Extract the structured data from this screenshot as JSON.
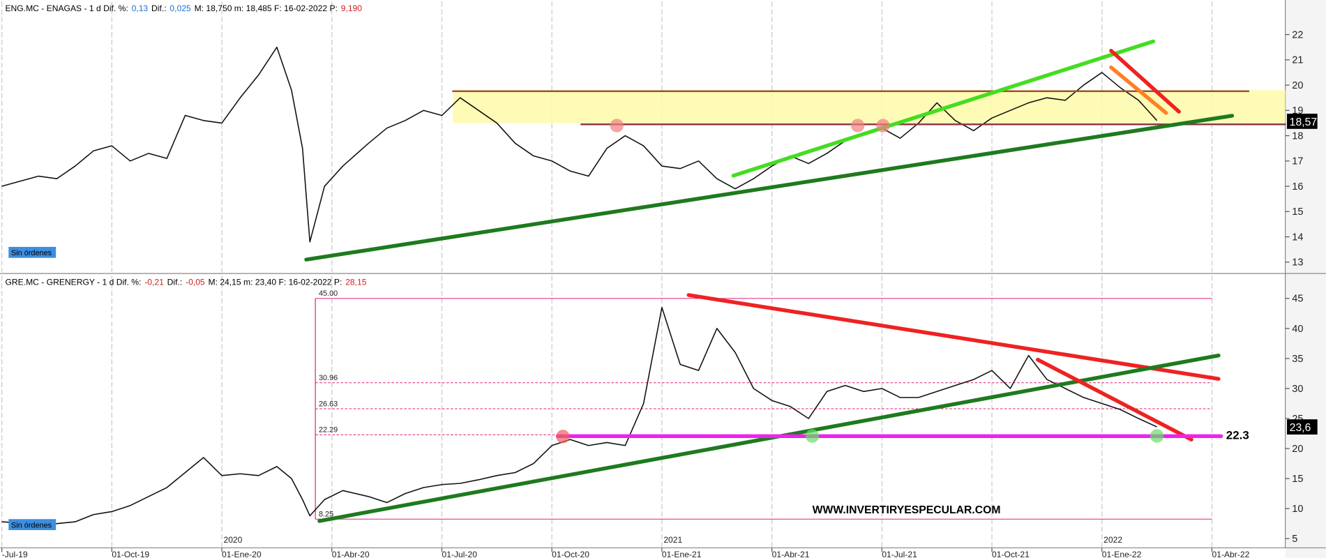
{
  "x_axis": {
    "xlim": [
      0,
      35
    ],
    "xticks": [
      {
        "value": 0,
        "label": "-Jul-19"
      },
      {
        "value": 3,
        "label": "01-Oct-19"
      },
      {
        "value": 6,
        "label": "01-Ene-20"
      },
      {
        "value": 9,
        "label": "01-Abr-20"
      },
      {
        "value": 12,
        "label": "01-Jul-20"
      },
      {
        "value": 15,
        "label": "01-Oct-20"
      },
      {
        "value": 18,
        "label": "01-Ene-21"
      },
      {
        "value": 21,
        "label": "01-Abr-21"
      },
      {
        "value": 24,
        "label": "01-Jul-21"
      },
      {
        "value": 27,
        "label": "01-Oct-21"
      },
      {
        "value": 30,
        "label": "01-Ene-22"
      },
      {
        "value": 33,
        "label": "01-Abr-22"
      }
    ],
    "year_labels": [
      {
        "value": 6,
        "label": "2020"
      },
      {
        "value": 18,
        "label": "2021"
      },
      {
        "value": 30,
        "label": "2022"
      }
    ]
  },
  "watermark": "WWW.INVERTIRYESPECULAR.COM",
  "chart_data": [
    {
      "type": "line",
      "color": "#111111",
      "header": [
        {
          "text": "ENG.MC - ENAGAS -  1 d  Dif. %:",
          "color": "#000000"
        },
        {
          "text": "0,13",
          "color": "#1e6fd0"
        },
        {
          "text": "Dif.:",
          "color": "#000000"
        },
        {
          "text": "0,025",
          "color": "#1e6fd0"
        },
        {
          "text": "M: 18,750  m: 18,485  F: 16-02-2022  P:",
          "color": "#000000"
        },
        {
          "text": "9,190",
          "color": "#d02020"
        }
      ],
      "badge": "Sin órdenes",
      "ylim": [
        12.6,
        23.3
      ],
      "yticks": [
        13,
        14,
        15,
        16,
        17,
        18,
        19,
        20,
        21,
        22
      ],
      "last_price": {
        "value": 18.57,
        "label": "18,57"
      },
      "x": [
        0,
        0.5,
        1,
        1.5,
        2,
        2.5,
        3,
        3.5,
        4,
        4.5,
        5,
        5.5,
        6,
        6.5,
        7,
        7.5,
        7.9,
        8.2,
        8.4,
        8.8,
        9.3,
        10,
        10.5,
        11,
        11.5,
        12,
        12.5,
        13,
        13.5,
        14,
        14.5,
        15,
        15.5,
        16,
        16.5,
        17,
        17.5,
        18,
        18.5,
        19,
        19.5,
        20,
        20.5,
        21,
        21.5,
        22,
        22.5,
        23,
        23.5,
        24,
        24.5,
        25,
        25.5,
        26,
        26.5,
        27,
        27.5,
        28,
        28.5,
        29,
        29.5,
        30,
        30.5,
        31,
        31.5
      ],
      "values": [
        16.0,
        16.2,
        16.4,
        16.3,
        16.8,
        17.4,
        17.6,
        17.0,
        17.3,
        17.1,
        18.8,
        18.6,
        18.5,
        19.5,
        20.4,
        21.5,
        19.8,
        17.5,
        13.8,
        16.0,
        16.8,
        17.7,
        18.3,
        18.6,
        19.0,
        18.8,
        19.5,
        19.0,
        18.5,
        17.7,
        17.2,
        17.0,
        16.6,
        16.4,
        17.5,
        18.0,
        17.6,
        16.8,
        16.7,
        17.0,
        16.3,
        15.9,
        16.3,
        16.8,
        17.2,
        16.9,
        17.3,
        17.8,
        18.1,
        18.3,
        17.9,
        18.5,
        19.3,
        18.6,
        18.2,
        18.7,
        19.0,
        19.3,
        19.5,
        19.4,
        20.0,
        20.5,
        19.9,
        19.4,
        18.6
      ],
      "overlays": [
        {
          "kind": "band",
          "x": [
            12.3,
            35
          ],
          "y": [
            18.5,
            19.8
          ],
          "color": "#fdfaa8"
        },
        {
          "kind": "thin",
          "x": [
            12.3,
            34.0
          ],
          "y": [
            19.76,
            19.76
          ],
          "color": "#a0522d"
        },
        {
          "kind": "thin",
          "x": [
            15.8,
            35
          ],
          "y": [
            18.45,
            18.45
          ],
          "color": "#8b3a4a"
        },
        {
          "kind": "thick",
          "x": [
            8.3,
            33.55
          ],
          "y": [
            13.1,
            18.79
          ],
          "color": "#1e7a1e"
        },
        {
          "kind": "thick",
          "x": [
            19.95,
            31.4
          ],
          "y": [
            16.42,
            21.73
          ],
          "color": "#44dd22"
        },
        {
          "kind": "thick",
          "x": [
            30.25,
            32.1
          ],
          "y": [
            21.36,
            18.95
          ],
          "color": "#ee2222"
        },
        {
          "kind": "thick",
          "x": [
            30.25,
            31.75
          ],
          "y": [
            20.7,
            18.9
          ],
          "color": "#ff7f27"
        },
        {
          "kind": "dot",
          "x": [
            16.77
          ],
          "y": [
            18.4
          ],
          "color": "#f08080"
        },
        {
          "kind": "dot",
          "x": [
            23.34
          ],
          "y": [
            18.4
          ],
          "color": "#f08080"
        },
        {
          "kind": "dot",
          "x": [
            24.03
          ],
          "y": [
            18.4
          ],
          "color": "#f08080"
        }
      ]
    },
    {
      "type": "line",
      "color": "#111111",
      "header": [
        {
          "text": "GRE.MC - GRENERGY -  1 d  Dif. %:",
          "color": "#000000"
        },
        {
          "text": "-0,21",
          "color": "#d02020"
        },
        {
          "text": "Dif.:",
          "color": "#000000"
        },
        {
          "text": "-0,05",
          "color": "#d02020"
        },
        {
          "text": "M: 24,15  m: 23,40  F: 16-02-2022  P:",
          "color": "#000000"
        },
        {
          "text": "28,15",
          "color": "#d02020"
        }
      ],
      "badge": "Sin órdenes",
      "ylim": [
        3.6,
        48.8
      ],
      "yticks": [
        5,
        10,
        15,
        20,
        25,
        30,
        35,
        40,
        45
      ],
      "last_price": {
        "value": 23.6,
        "label": "23,6"
      },
      "level_label": {
        "value": 22.3,
        "label": "22.3"
      },
      "levels_x": [
        8.55,
        33.0
      ],
      "levels_color": "#e0207a",
      "levels": [
        {
          "value": 45,
          "label": "45.00"
        },
        {
          "value": 30.96,
          "label": "30.96"
        },
        {
          "value": 26.63,
          "label": "26.63"
        },
        {
          "value": 22.29,
          "label": "22.29"
        },
        {
          "value": 8.25,
          "label": "8.25"
        }
      ],
      "x": [
        0,
        0.5,
        1,
        1.5,
        2,
        2.5,
        3,
        3.5,
        4,
        4.5,
        5,
        5.5,
        6,
        6.5,
        7,
        7.5,
        7.9,
        8.2,
        8.4,
        8.8,
        9.3,
        10,
        10.5,
        11,
        11.5,
        12,
        12.5,
        13,
        13.5,
        14,
        14.5,
        15,
        15.5,
        16,
        16.5,
        17,
        17.5,
        18,
        18.5,
        19,
        19.5,
        20,
        20.5,
        21,
        21.5,
        22,
        22.5,
        23,
        23.5,
        24,
        24.5,
        25,
        25.5,
        26,
        26.5,
        27,
        27.5,
        28,
        28.5,
        29,
        29.5,
        30,
        30.5,
        31,
        31.5
      ],
      "values": [
        7.8,
        7.6,
        7.4,
        7.5,
        7.8,
        9.0,
        9.5,
        10.5,
        12.0,
        13.5,
        16.0,
        18.5,
        15.5,
        15.8,
        15.5,
        17.0,
        15.0,
        11.5,
        8.8,
        11.5,
        13.0,
        12.0,
        11.0,
        12.5,
        13.5,
        14.0,
        14.2,
        14.8,
        15.5,
        16.0,
        17.5,
        20.5,
        21.5,
        20.5,
        21.0,
        20.5,
        27.5,
        43.5,
        34.0,
        33.0,
        40.0,
        36.0,
        30.0,
        28.0,
        27.0,
        25.0,
        29.5,
        30.5,
        29.5,
        30.0,
        28.5,
        28.5,
        29.5,
        30.5,
        31.5,
        33.0,
        30.0,
        35.5,
        31.5,
        30.0,
        28.5,
        27.5,
        26.5,
        25.0,
        23.6
      ],
      "overlays": [
        {
          "kind": "thick",
          "x": [
            18.73,
            33.18
          ],
          "y": [
            45.56,
            31.6
          ],
          "color": "#ee2222"
        },
        {
          "kind": "thick",
          "x": [
            8.66,
            33.18
          ],
          "y": [
            7.94,
            35.5
          ],
          "color": "#1e7a1e"
        },
        {
          "kind": "thick",
          "x": [
            28.25,
            32.44
          ],
          "y": [
            34.8,
            21.5
          ],
          "color": "#ee2222"
        },
        {
          "kind": "thick",
          "x": [
            15.16,
            33.25
          ],
          "y": [
            22.06,
            22.06
          ],
          "color": "#ee22ee"
        },
        {
          "kind": "dot",
          "x": [
            15.3
          ],
          "y": [
            22.0
          ],
          "color": "#f06060"
        },
        {
          "kind": "dot",
          "x": [
            22.1
          ],
          "y": [
            22.1
          ],
          "color": "#66dd66"
        },
        {
          "kind": "dot",
          "x": [
            31.5
          ],
          "y": [
            22.1
          ],
          "color": "#66dd66"
        }
      ]
    }
  ]
}
